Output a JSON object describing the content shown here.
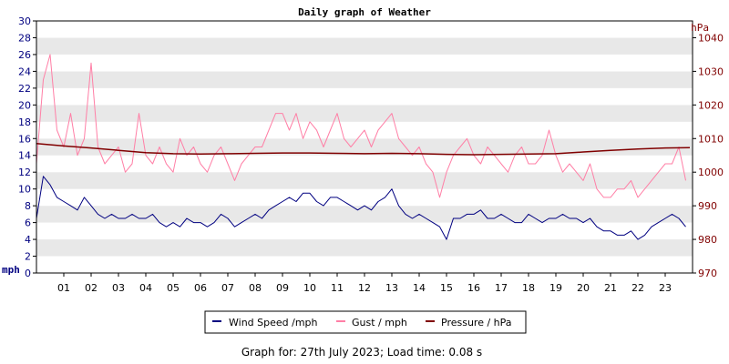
{
  "chart_data": {
    "type": "line",
    "title": "Daily graph of Weather",
    "left_axis": {
      "label": "mph",
      "ylim": [
        0,
        30
      ],
      "ticks": [
        "0",
        "2",
        "4",
        "6",
        "8",
        "10",
        "12",
        "14",
        "16",
        "18",
        "20",
        "22",
        "24",
        "26",
        "28",
        "30"
      ]
    },
    "right_axis": {
      "label": "hPa",
      "ylim": [
        970,
        1045
      ],
      "ticks": [
        "970",
        "980",
        "990",
        "1000",
        "1010",
        "1020",
        "1030",
        "1040"
      ]
    },
    "x_axis": {
      "xlim": [
        0,
        24
      ],
      "ticks": [
        "01",
        "02",
        "03",
        "04",
        "05",
        "06",
        "07",
        "08",
        "09",
        "10",
        "11",
        "12",
        "13",
        "14",
        "15",
        "16",
        "17",
        "18",
        "19",
        "20",
        "21",
        "22",
        "23"
      ]
    },
    "grid": "horizontal alternating bands",
    "legend_position": "bottom-center",
    "series": [
      {
        "name": "Wind Speed /mph",
        "axis": "left",
        "color": "#000080",
        "x": [
          0,
          0.25,
          0.5,
          0.75,
          1,
          1.25,
          1.5,
          1.75,
          2,
          2.25,
          2.5,
          2.75,
          3,
          3.25,
          3.5,
          3.75,
          4,
          4.25,
          4.5,
          4.75,
          5,
          5.25,
          5.5,
          5.75,
          6,
          6.25,
          6.5,
          6.75,
          7,
          7.25,
          7.5,
          7.75,
          8,
          8.25,
          8.5,
          8.75,
          9,
          9.25,
          9.5,
          9.75,
          10,
          10.25,
          10.5,
          10.75,
          11,
          11.25,
          11.5,
          11.75,
          12,
          12.25,
          12.5,
          12.75,
          13,
          13.25,
          13.5,
          13.75,
          14,
          14.25,
          14.5,
          14.75,
          15,
          15.25,
          15.5,
          15.75,
          16,
          16.25,
          16.5,
          16.75,
          17,
          17.25,
          17.5,
          17.75,
          18,
          18.25,
          18.5,
          18.75,
          19,
          19.25,
          19.5,
          19.75,
          20,
          20.25,
          20.5,
          20.75,
          21,
          21.25,
          21.5,
          21.75,
          22,
          22.25,
          22.5,
          22.75,
          23,
          23.25,
          23.5,
          23.75
        ],
        "values": [
          6.5,
          11.5,
          10.5,
          9,
          8.5,
          8,
          7.5,
          9,
          8,
          7,
          6.5,
          7,
          6.5,
          6.5,
          7,
          6.5,
          6.5,
          7,
          6,
          5.5,
          6,
          5.5,
          6.5,
          6,
          6,
          5.5,
          6,
          7,
          6.5,
          5.5,
          6,
          6.5,
          7,
          6.5,
          7.5,
          8,
          8.5,
          9,
          8.5,
          9.5,
          9.5,
          8.5,
          8,
          9,
          9,
          8.5,
          8,
          7.5,
          8,
          7.5,
          8.5,
          9,
          10,
          8,
          7,
          6.5,
          7,
          6.5,
          6,
          5.5,
          4,
          6.5,
          6.5,
          7,
          7,
          7.5,
          6.5,
          6.5,
          7,
          6.5,
          6,
          6,
          7,
          6.5,
          6,
          6.5,
          6.5,
          7,
          6.5,
          6.5,
          6,
          6.5,
          5.5,
          5,
          5,
          4.5,
          4.5,
          5,
          4,
          4.5,
          5.5,
          6,
          6.5,
          7,
          6.5,
          5.5
        ]
      },
      {
        "name": "Gust / mph",
        "axis": "left",
        "color": "#ff7fa6",
        "x": [
          0,
          0.25,
          0.5,
          0.75,
          1,
          1.25,
          1.5,
          1.75,
          2,
          2.25,
          2.5,
          2.75,
          3,
          3.25,
          3.5,
          3.75,
          4,
          4.25,
          4.5,
          4.75,
          5,
          5.25,
          5.5,
          5.75,
          6,
          6.25,
          6.5,
          6.75,
          7,
          7.25,
          7.5,
          7.75,
          8,
          8.25,
          8.5,
          8.75,
          9,
          9.25,
          9.5,
          9.75,
          10,
          10.25,
          10.5,
          10.75,
          11,
          11.25,
          11.5,
          11.75,
          12,
          12.25,
          12.5,
          12.75,
          13,
          13.25,
          13.5,
          13.75,
          14,
          14.25,
          14.5,
          14.75,
          15,
          15.25,
          15.5,
          15.75,
          16,
          16.25,
          16.5,
          16.75,
          17,
          17.25,
          17.5,
          17.75,
          18,
          18.25,
          18.5,
          18.75,
          19,
          19.25,
          19.5,
          19.75,
          20,
          20.25,
          20.5,
          20.75,
          21,
          21.25,
          21.5,
          21.75,
          22,
          22.25,
          22.5,
          22.75,
          23,
          23.25,
          23.5,
          23.75
        ],
        "values": [
          13,
          23,
          26,
          17,
          15,
          19,
          14,
          16,
          25,
          15,
          13,
          14,
          15,
          12,
          13,
          19,
          14,
          13,
          15,
          13,
          12,
          16,
          14,
          15,
          13,
          12,
          14,
          15,
          13,
          11,
          13,
          14,
          15,
          15,
          17,
          19,
          19,
          17,
          19,
          16,
          18,
          17,
          15,
          17,
          19,
          16,
          15,
          16,
          17,
          15,
          17,
          18,
          19,
          16,
          15,
          14,
          15,
          13,
          12,
          9,
          12,
          14,
          15,
          16,
          14,
          13,
          15,
          14,
          13,
          12,
          14,
          15,
          13,
          13,
          14,
          17,
          14,
          12,
          13,
          12,
          11,
          13,
          10,
          9,
          9,
          10,
          10,
          11,
          9,
          10,
          11,
          12,
          13,
          13,
          15,
          11
        ]
      },
      {
        "name": "Pressure / hPa",
        "axis": "right",
        "color": "#800000",
        "x": [
          0,
          1,
          2,
          3,
          4,
          5,
          6,
          7,
          8,
          9,
          10,
          11,
          12,
          13,
          14,
          15,
          16,
          17,
          18,
          19,
          20,
          21,
          22,
          23,
          23.9
        ],
        "values": [
          1008.5,
          1007.8,
          1007.2,
          1006.5,
          1005.8,
          1005.5,
          1005.4,
          1005.5,
          1005.6,
          1005.7,
          1005.7,
          1005.6,
          1005.5,
          1005.6,
          1005.5,
          1005.3,
          1005.2,
          1005.3,
          1005.4,
          1005.5,
          1006,
          1006.5,
          1006.9,
          1007.2,
          1007.3
        ]
      }
    ]
  },
  "legend": {
    "items": [
      {
        "label": "Wind Speed /mph",
        "color": "#000080"
      },
      {
        "label": "Gust / mph",
        "color": "#ff7fa6"
      },
      {
        "label": "Pressure / hPa",
        "color": "#800000"
      }
    ]
  },
  "footer": {
    "text": "Graph for: 27th July 2023; Load time: 0.08 s"
  }
}
